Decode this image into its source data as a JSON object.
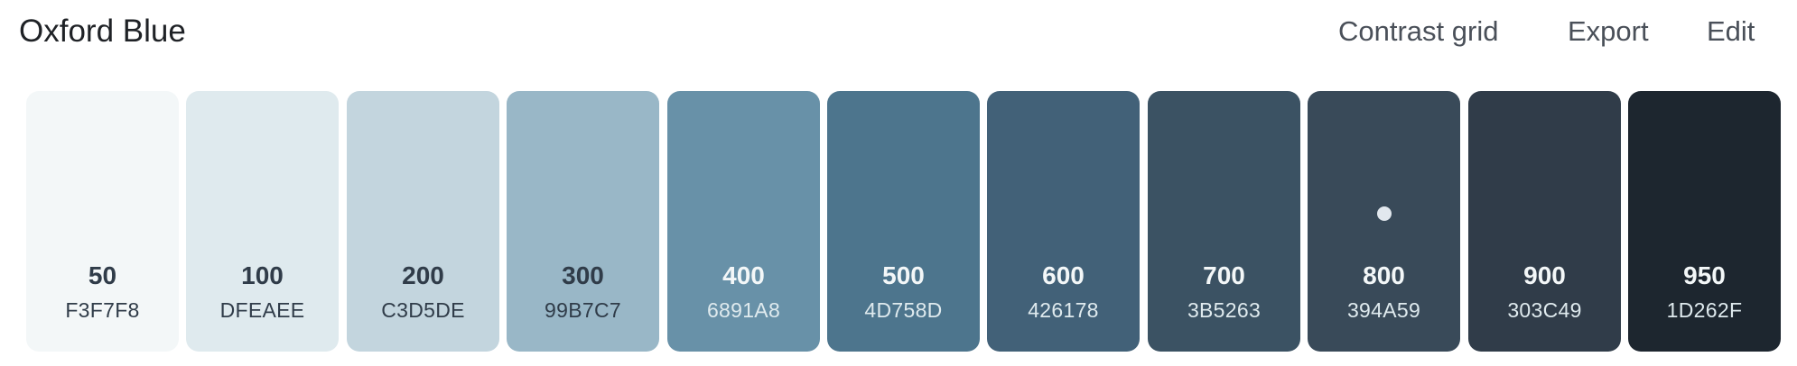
{
  "header": {
    "title": "Oxford Blue",
    "nav": {
      "contrast_grid": "Contrast grid",
      "export": "Export",
      "edit": "Edit"
    }
  },
  "palette": {
    "swatches": [
      {
        "shade": "50",
        "hex": "F3F7F8",
        "color": "#F3F7F8",
        "text_color": "#303C49",
        "hex_color": "#303C49",
        "selected": false
      },
      {
        "shade": "100",
        "hex": "DFEAEE",
        "color": "#DFEAEE",
        "text_color": "#303C49",
        "hex_color": "#303C49",
        "selected": false
      },
      {
        "shade": "200",
        "hex": "C3D5DE",
        "color": "#C3D5DE",
        "text_color": "#303C49",
        "hex_color": "#303C49",
        "selected": false
      },
      {
        "shade": "300",
        "hex": "99B7C7",
        "color": "#99B7C7",
        "text_color": "#303C49",
        "hex_color": "#303C49",
        "selected": false
      },
      {
        "shade": "400",
        "hex": "6891A8",
        "color": "#6891A8",
        "text_color": "#F3F7F8",
        "hex_color": "#DFEAEE",
        "selected": false
      },
      {
        "shade": "500",
        "hex": "4D758D",
        "color": "#4D758D",
        "text_color": "#F3F7F8",
        "hex_color": "#DFEAEE",
        "selected": false
      },
      {
        "shade": "600",
        "hex": "426178",
        "color": "#426178",
        "text_color": "#F3F7F8",
        "hex_color": "#DFEAEE",
        "selected": false
      },
      {
        "shade": "700",
        "hex": "3B5263",
        "color": "#3B5263",
        "text_color": "#F3F7F8",
        "hex_color": "#DFEAEE",
        "selected": false
      },
      {
        "shade": "800",
        "hex": "394A59",
        "color": "#394A59",
        "text_color": "#F3F7F8",
        "hex_color": "#DFEAEE",
        "selected": true
      },
      {
        "shade": "900",
        "hex": "303C49",
        "color": "#303C49",
        "text_color": "#F3F7F8",
        "hex_color": "#DFEAEE",
        "selected": false
      },
      {
        "shade": "950",
        "hex": "1D262F",
        "color": "#1D262F",
        "text_color": "#F3F7F8",
        "hex_color": "#DFEAEE",
        "selected": false
      }
    ]
  }
}
